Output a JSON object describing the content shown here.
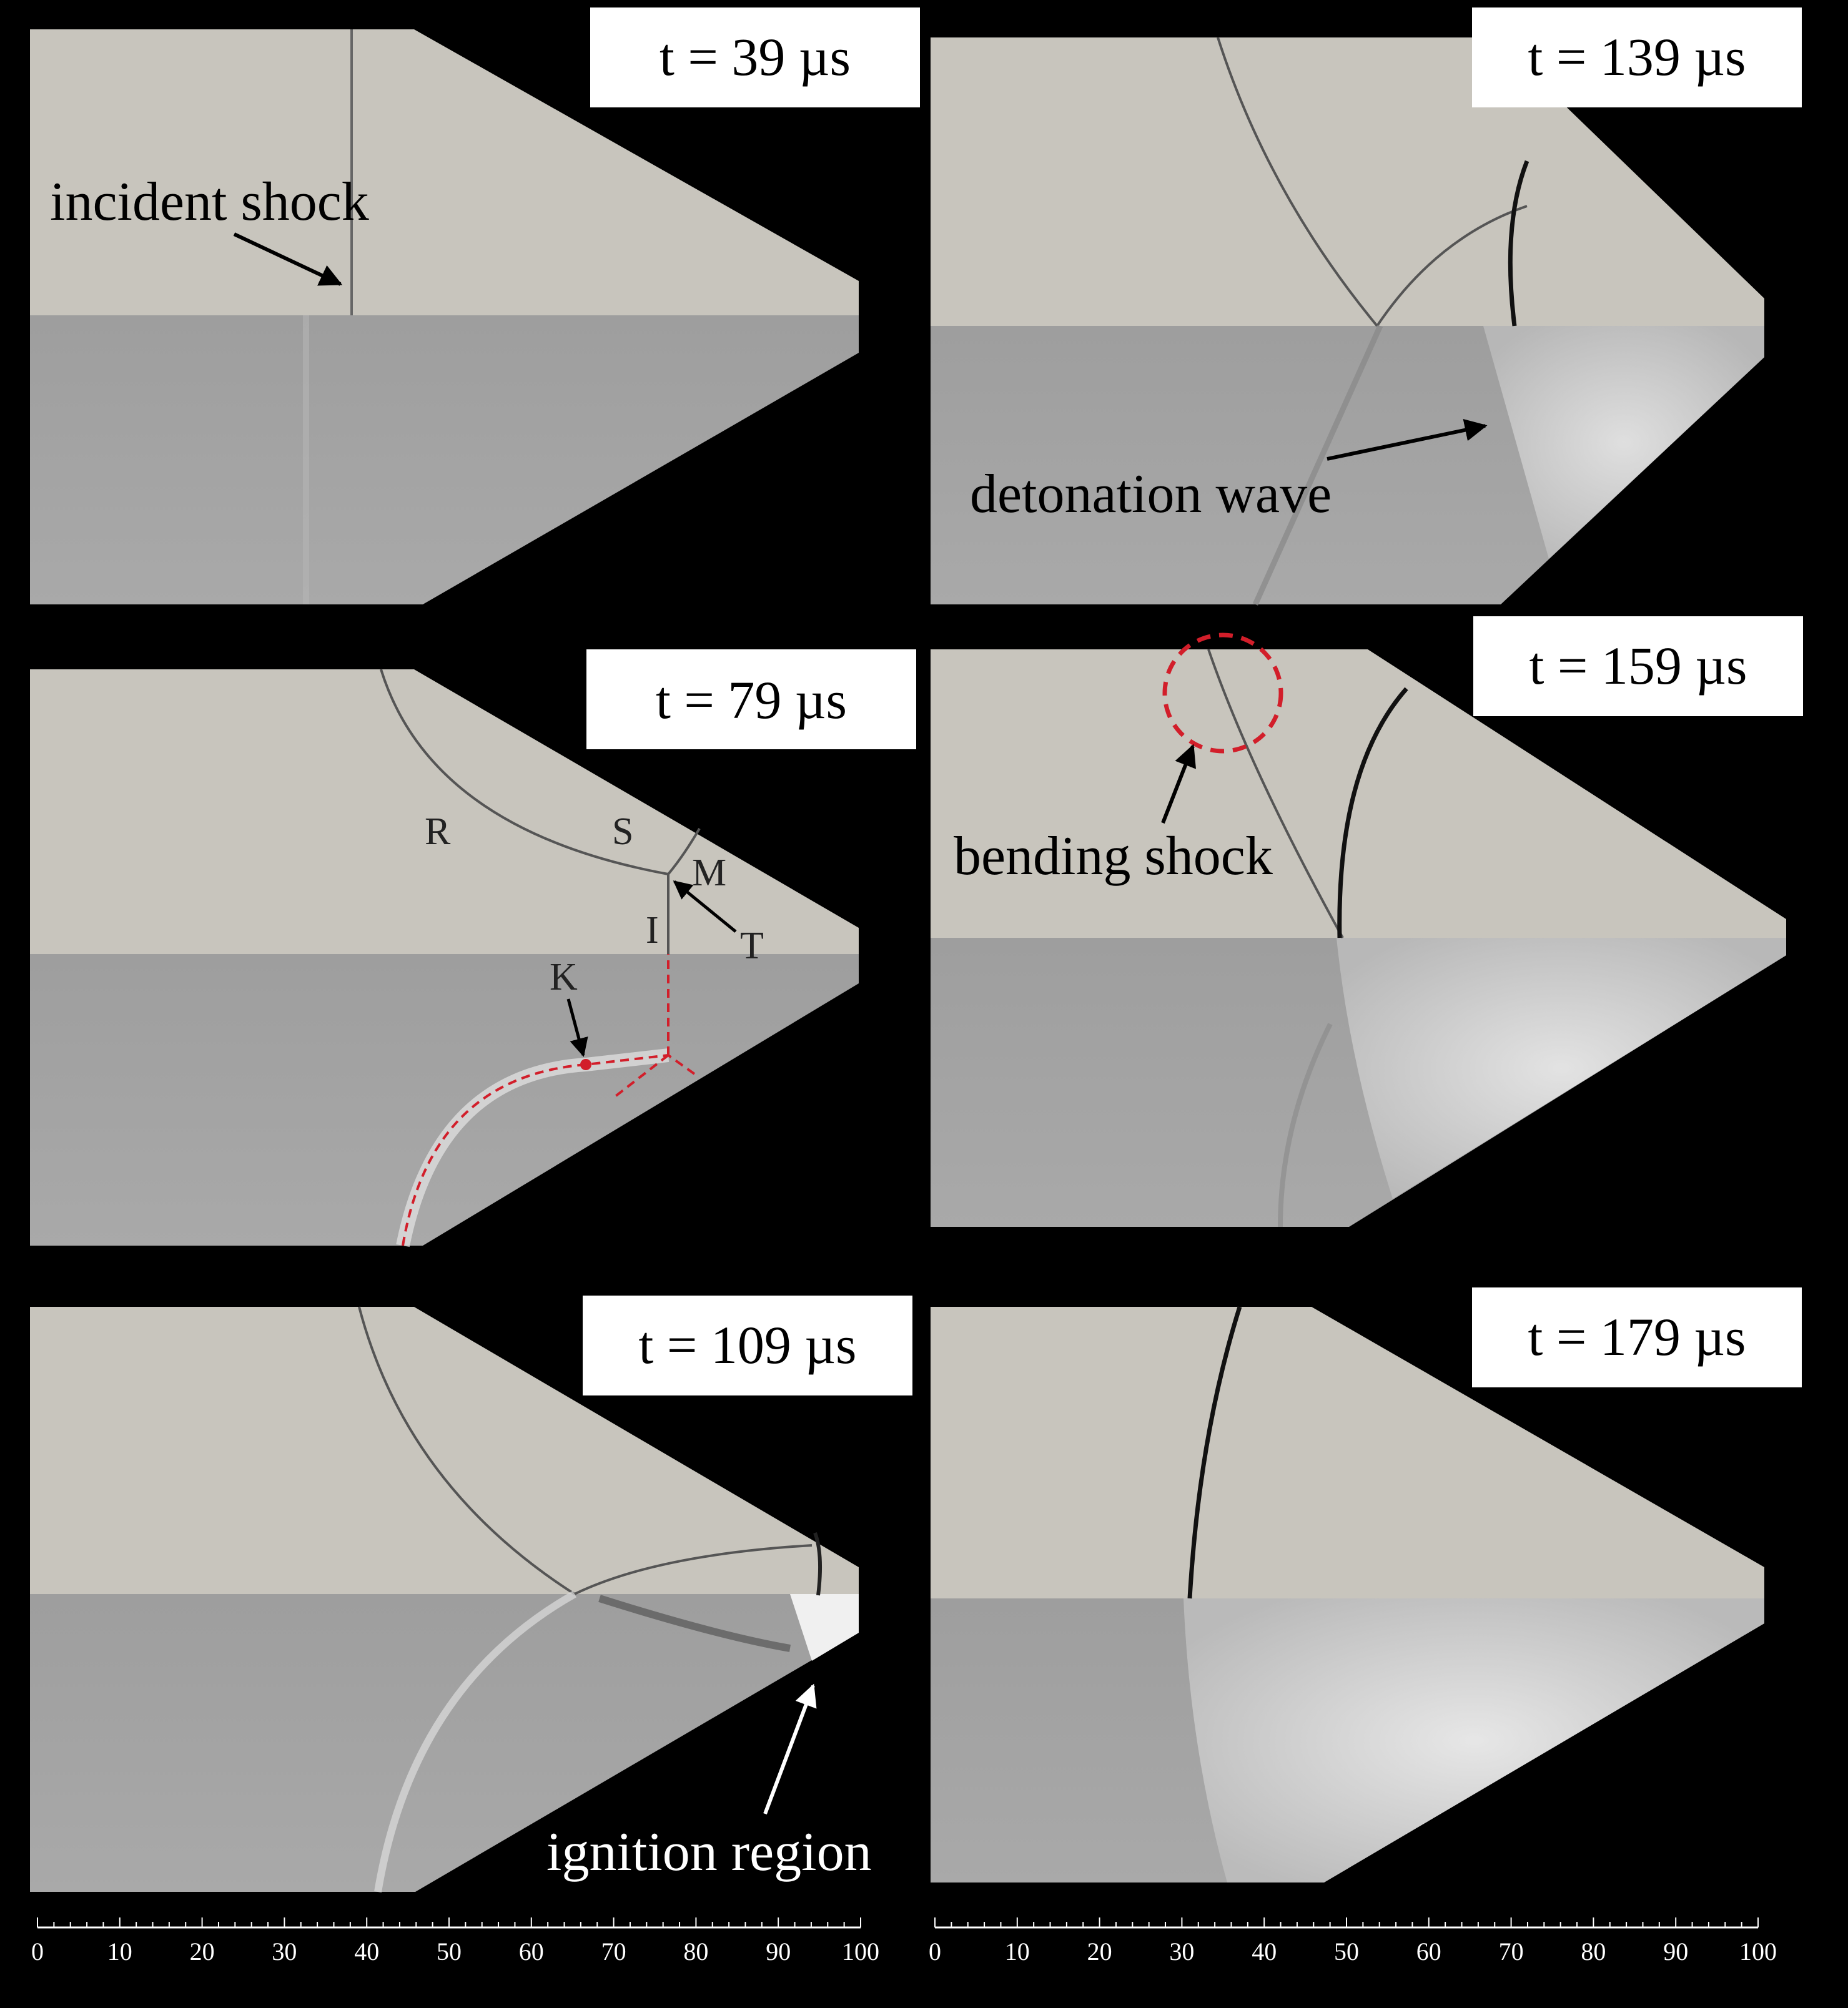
{
  "colors": {
    "background": "#000000",
    "numerical_region": "#c8c5bd",
    "experimental_region": "#a6a6a6",
    "shock_line": "#555555",
    "highlight": "#d21e2a",
    "label_box": "#ffffff"
  },
  "panels": [
    {
      "time_label": "t = 39 µs"
    },
    {
      "time_label": "t = 139 µs"
    },
    {
      "time_label": "t = 79 µs"
    },
    {
      "time_label": "t = 159 µs"
    },
    {
      "time_label": "t = 109 µs"
    },
    {
      "time_label": "t = 179 µs"
    }
  ],
  "annotations": {
    "incident_shock": "incident shock",
    "detonation_wave": "detonation wave",
    "bending_shock": "bending shock",
    "ignition_region": "ignition region"
  },
  "wave_labels": {
    "R": "R",
    "S": "S",
    "M": "M",
    "I": "I",
    "T": "T",
    "K": "K"
  },
  "axis": {
    "tick_labels": [
      "0",
      "10",
      "20",
      "30",
      "40",
      "50",
      "60",
      "70",
      "80",
      "90",
      "100"
    ]
  }
}
